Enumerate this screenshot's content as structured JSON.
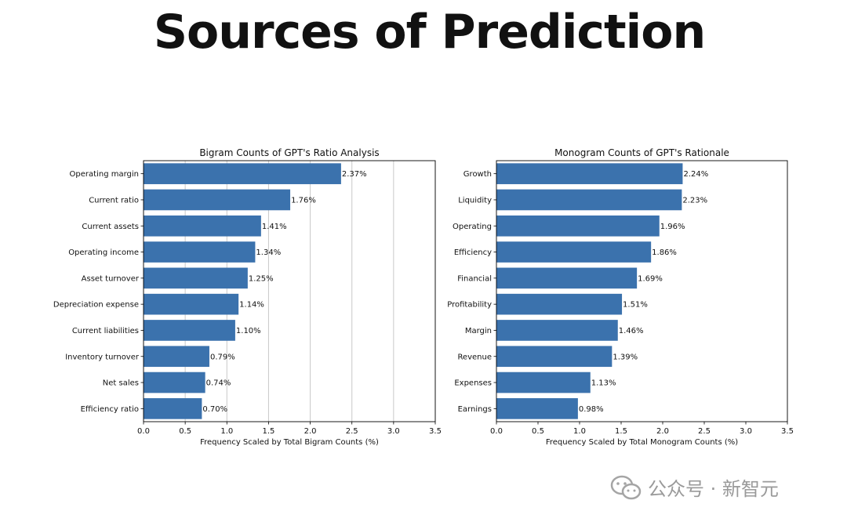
{
  "page": {
    "title": "Sources of Prediction"
  },
  "watermark": {
    "text": "公众号 · 新智元",
    "icon": "wechat-icon"
  },
  "bar_color": "#3b72ad",
  "chart_data": [
    {
      "type": "bar",
      "orientation": "horizontal",
      "title": "Bigram Counts of GPT's Ratio Analysis",
      "xlabel": "Frequency Scaled by Total Bigram Counts (%)",
      "ylabel": "",
      "xlim": [
        0,
        3.5
      ],
      "xticks": [
        "0.0",
        "0.5",
        "1.0",
        "1.5",
        "2.0",
        "2.5",
        "3.0",
        "3.5"
      ],
      "grid": "vertical",
      "categories": [
        "Operating margin",
        "Current ratio",
        "Current assets",
        "Operating income",
        "Asset turnover",
        "Depreciation expense",
        "Current liabilities",
        "Inventory turnover",
        "Net sales",
        "Efficiency ratio"
      ],
      "values": [
        2.37,
        1.76,
        1.41,
        1.34,
        1.25,
        1.14,
        1.1,
        0.79,
        0.74,
        0.7
      ],
      "labels": [
        "2.37%",
        "1.76%",
        "1.41%",
        "1.34%",
        "1.25%",
        "1.14%",
        "1.10%",
        "0.79%",
        "0.74%",
        "0.70%"
      ]
    },
    {
      "type": "bar",
      "orientation": "horizontal",
      "title": "Monogram Counts of GPT's Rationale",
      "xlabel": "Frequency Scaled by Total Monogram Counts (%)",
      "ylabel": "",
      "xlim": [
        0,
        3.5
      ],
      "xticks": [
        "0.0",
        "0.5",
        "1.0",
        "1.5",
        "2.0",
        "2.5",
        "3.0",
        "3.5"
      ],
      "grid": "none",
      "categories": [
        "Growth",
        "Liquidity",
        "Operating",
        "Efficiency",
        "Financial",
        "Profitability",
        "Margin",
        "Revenue",
        "Expenses",
        "Earnings"
      ],
      "values": [
        2.24,
        2.23,
        1.96,
        1.86,
        1.69,
        1.51,
        1.46,
        1.39,
        1.13,
        0.98
      ],
      "labels": [
        "2.24%",
        "2.23%",
        "1.96%",
        "1.86%",
        "1.69%",
        "1.51%",
        "1.46%",
        "1.39%",
        "1.13%",
        "0.98%"
      ]
    }
  ]
}
